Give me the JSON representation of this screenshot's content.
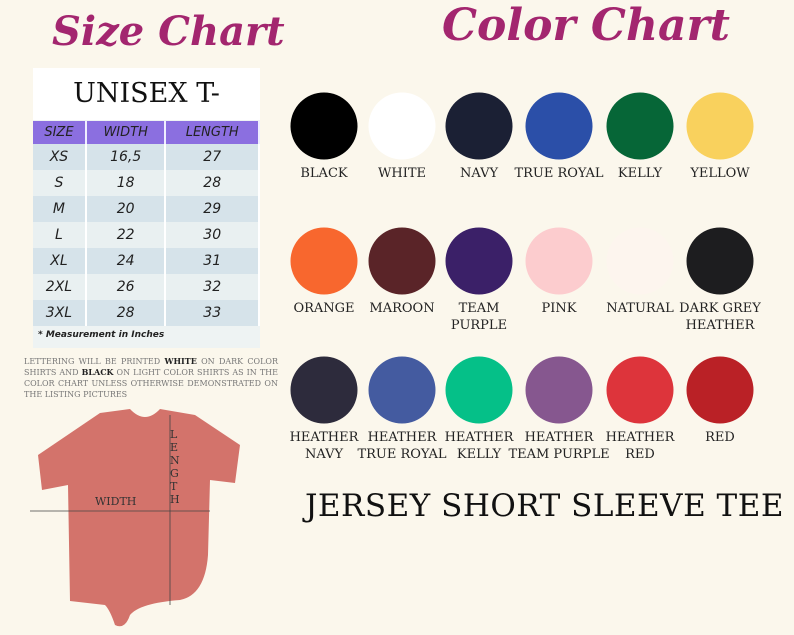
{
  "size_chart": {
    "title": "Size Chart",
    "table_title": "UNISEX T-SHIRT",
    "headers": [
      "SIZE",
      "WIDTH",
      "LENGTH"
    ],
    "rows": [
      [
        "XS",
        "16,5",
        "27"
      ],
      [
        "S",
        "18",
        "28"
      ],
      [
        "M",
        "20",
        "29"
      ],
      [
        "L",
        "22",
        "30"
      ],
      [
        "XL",
        "24",
        "31"
      ],
      [
        "2XL",
        "26",
        "32"
      ],
      [
        "3XL",
        "28",
        "33"
      ]
    ],
    "note": "* Measurement in Inches"
  },
  "lettering": {
    "p1": "Lettering will be printed ",
    "white": "WHITE",
    "p2": " on dark color shirts and ",
    "black": "BLACK",
    "p3": " on light color shirts as in the color chart unless otherwise demonstrated on the listing pictures"
  },
  "shirt": {
    "width_label": "WIDTH",
    "length_label": "LENGTH",
    "color": "#d3736b"
  },
  "color_chart": {
    "title": "Color Chart",
    "colors": [
      {
        "name": "BLACK",
        "hex": "#000000"
      },
      {
        "name": "WHITE",
        "hex": "#ffffff"
      },
      {
        "name": "NAVY",
        "hex": "#1b2034"
      },
      {
        "name": "TRUE ROYAL",
        "hex": "#2b4fa8"
      },
      {
        "name": "KELLY",
        "hex": "#066637"
      },
      {
        "name": "YELLOW",
        "hex": "#f9d15d"
      },
      {
        "name": "ORANGE",
        "hex": "#f8672e"
      },
      {
        "name": "MAROON",
        "hex": "#5a2428"
      },
      {
        "name": "TEAM PURPLE",
        "hex": "#3b2068"
      },
      {
        "name": "PINK",
        "hex": "#fcccce"
      },
      {
        "name": "NATURAL",
        "hex": "#fdf5ee"
      },
      {
        "name": "DARK GREY HEATHER",
        "hex": "#1d1d1f"
      },
      {
        "name": "HEATHER NAVY",
        "hex": "#2d2b3c"
      },
      {
        "name": "HEATHER TRUE ROYAL",
        "hex": "#445ba0"
      },
      {
        "name": "HEATHER KELLY",
        "hex": "#05c088"
      },
      {
        "name": "HEATHER TEAM PURPLE",
        "hex": "#86578f"
      },
      {
        "name": "HEATHER RED",
        "hex": "#dd343b"
      },
      {
        "name": "RED",
        "hex": "#ba2126"
      }
    ]
  },
  "footer": "JERSEY SHORT SLEEVE TEE"
}
